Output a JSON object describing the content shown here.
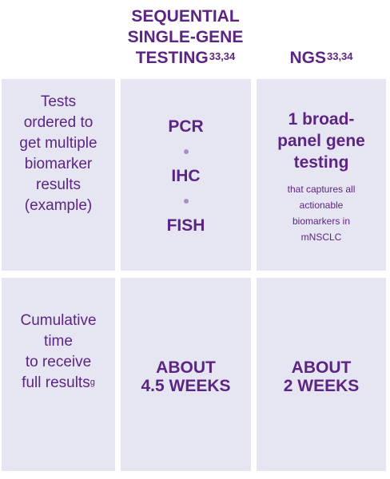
{
  "headers": {
    "sequential": {
      "lines": [
        "SEQUENTIAL",
        "SINGLE-GENE",
        "TESTING"
      ],
      "refs": "33,34"
    },
    "ngs": {
      "label": "NGS",
      "refs": "33,34"
    }
  },
  "rows": [
    {
      "label_lines": [
        "Tests",
        "ordered to",
        "get multiple",
        "biomarker",
        "results",
        "(example)"
      ],
      "sequential": [
        "PCR",
        "IHC",
        "FISH"
      ],
      "ngs": {
        "main_lines": [
          "1 broad-",
          "panel gene",
          "testing"
        ],
        "sub_lines": [
          "that captures all",
          "actionable",
          "biomarkers in",
          "mNSCLC"
        ]
      }
    },
    {
      "label_lines": [
        "Cumulative",
        "time",
        "to receive",
        "full results"
      ],
      "label_footnote": "g",
      "sequential_lines": [
        "ABOUT",
        "4.5 WEEKS"
      ],
      "ngs_lines": [
        "ABOUT",
        "2 WEEKS"
      ]
    }
  ],
  "colors": {
    "text": "#5c2483",
    "cell_bg": "#e6e6f3",
    "dot": "#a68fc4"
  }
}
